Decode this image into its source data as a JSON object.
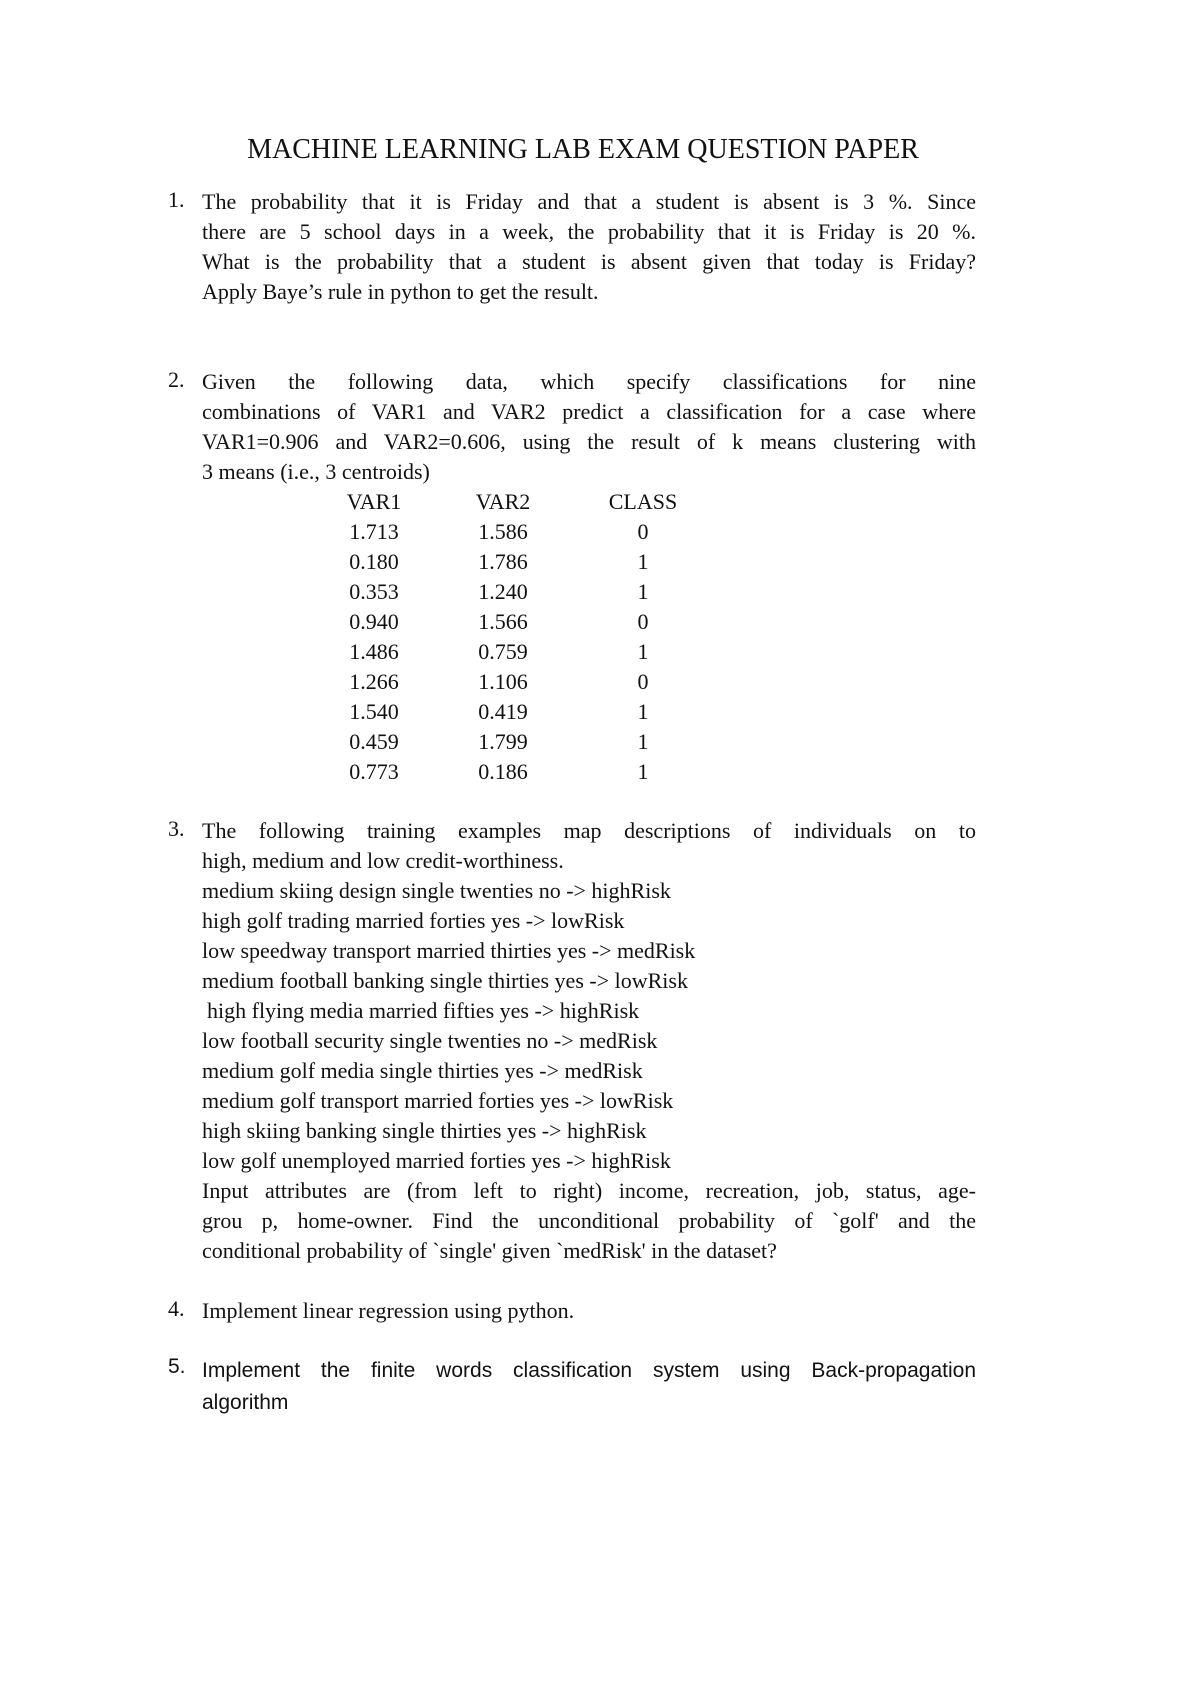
{
  "title": "MACHINE LEARNING LAB EXAM QUESTION PAPER",
  "questions": [
    {
      "number": "1.",
      "lines": [
        "The probability that it is Friday and that a student is absent is 3 %. Since",
        "there are 5 school days in a week, the probability that it is Friday is 20 %.",
        "What is the probability that a student is absent given that today is Friday?",
        "Apply Baye’s rule in python to get the result."
      ]
    },
    {
      "number": "2.",
      "lines": [
        "Given the following data, which specify classifications for nine",
        "combinations of VAR1 and VAR2 predict a classification for a case where",
        "VAR1=0.906 and VAR2=0.606, using the result of k means clustering with",
        "3 means (i.e., 3 centroids)"
      ]
    },
    {
      "number": "3.",
      "lines": [
        "The following training examples map descriptions of individuals on to",
        "high, medium and low credit-worthiness.",
        "medium skiing design single twenties no -> highRisk",
        "high golf trading married forties yes -> lowRisk",
        "low speedway transport married thirties yes -> medRisk",
        "medium football banking single thirties yes -> lowRisk",
        " high flying media married fifties yes -> highRisk",
        "low football security single twenties no -> medRisk",
        "medium golf media single thirties yes -> medRisk",
        "medium golf transport married forties yes -> lowRisk",
        "high skiing banking single thirties yes -> highRisk",
        "low golf unemployed married forties yes -> highRisk",
        "Input attributes are (from left to right) income, recreation, job, status, age-",
        "grou p, home-owner. Find the unconditional probability of `golf' and the",
        "conditional probability of `single' given `medRisk' in the dataset?"
      ]
    },
    {
      "number": "4.",
      "lines": [
        "Implement linear regression using python."
      ]
    },
    {
      "number": "5.",
      "lines": [
        "Implement the finite words classification system using Back-propagation",
        "algorithm"
      ]
    }
  ],
  "table": {
    "headers": [
      "VAR1",
      "VAR2",
      "CLASS"
    ],
    "rows": [
      [
        "1.713",
        "1.586",
        "0"
      ],
      [
        "0.180",
        "1.786",
        "1"
      ],
      [
        "0.353",
        "1.240",
        "1"
      ],
      [
        "0.940",
        "1.566",
        "0"
      ],
      [
        "1.486",
        "0.759",
        "1"
      ],
      [
        "1.266",
        "1.106",
        "0"
      ],
      [
        "1.540",
        "0.419",
        "1"
      ],
      [
        "0.459",
        "1.799",
        "1"
      ],
      [
        "0.773",
        "0.186",
        "1"
      ]
    ]
  }
}
